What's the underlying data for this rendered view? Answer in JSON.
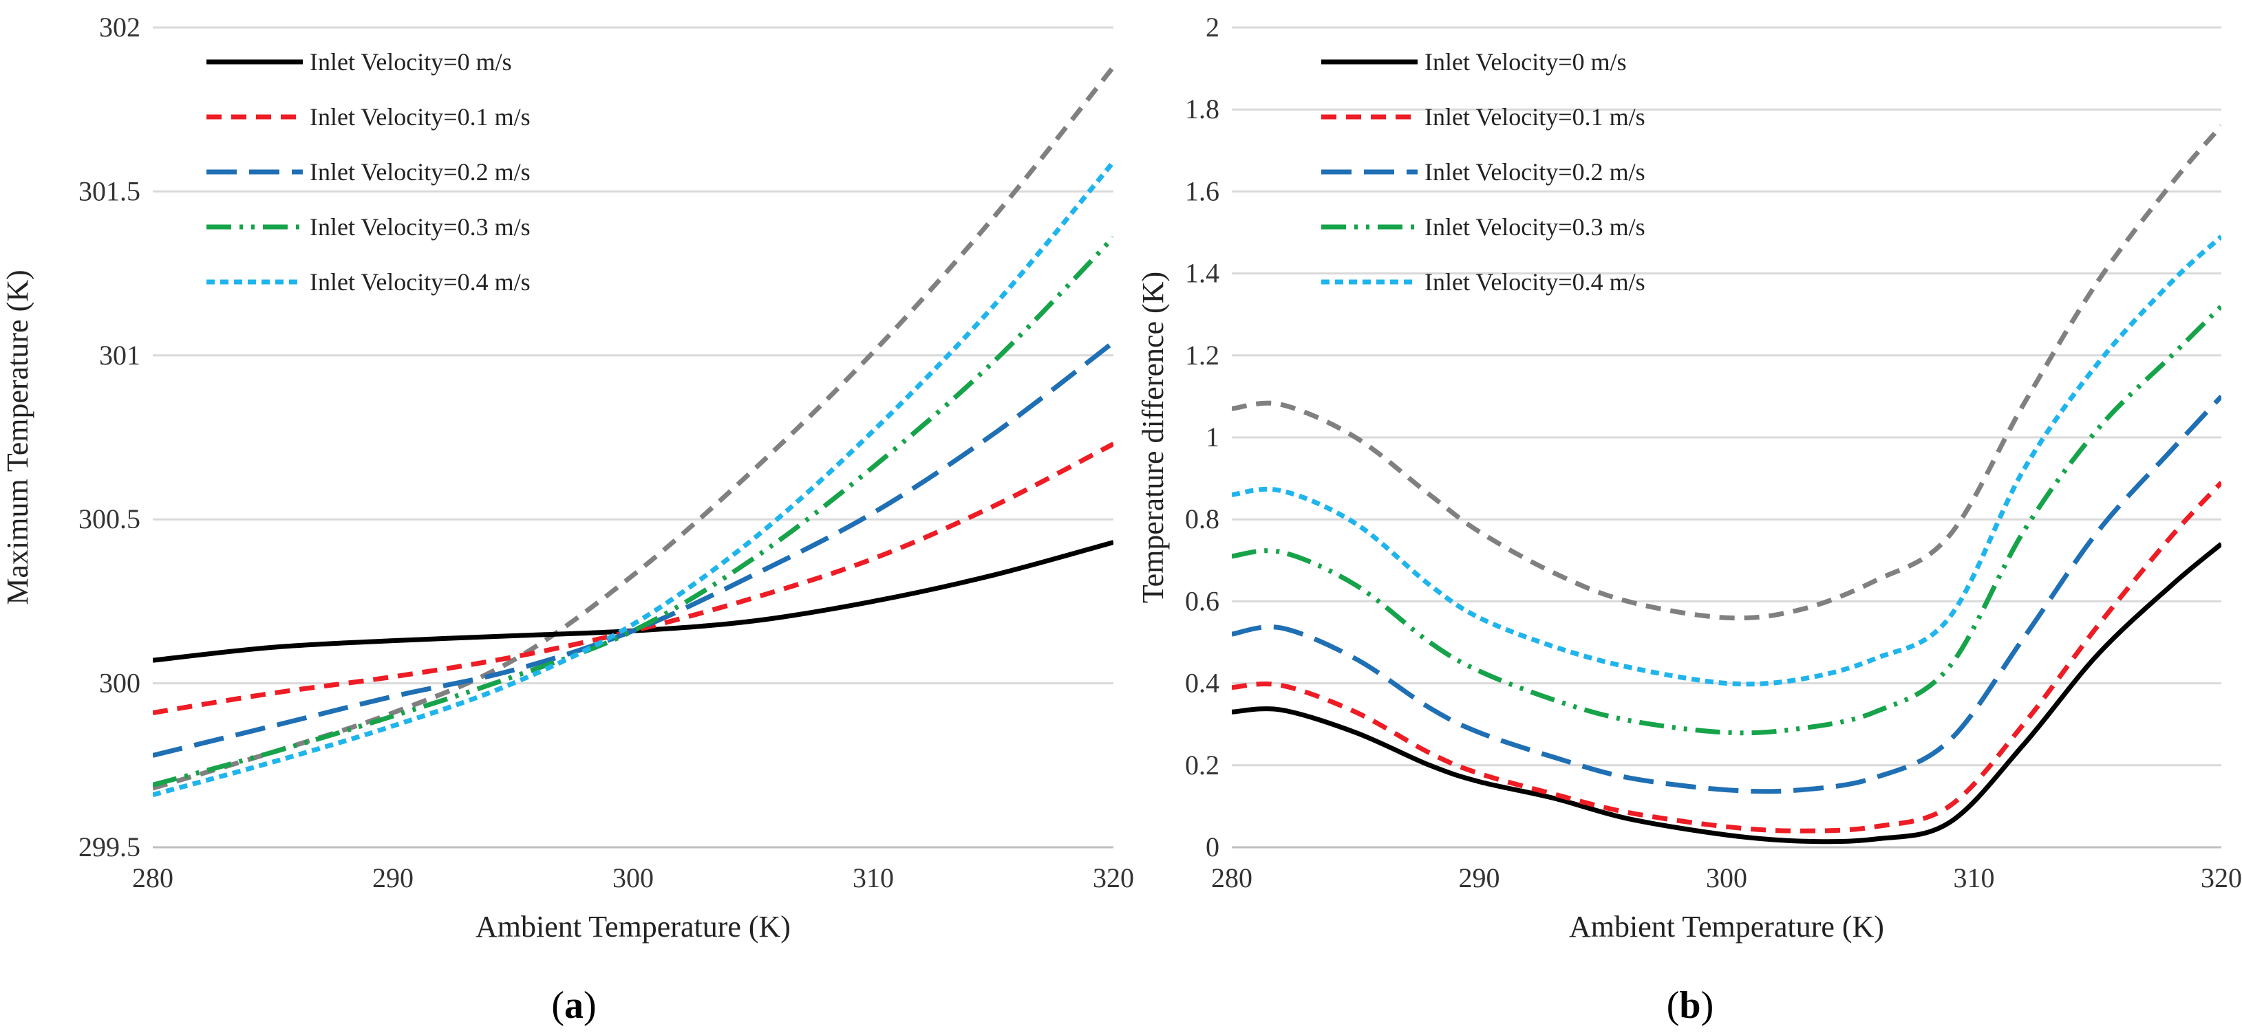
{
  "chart_data": [
    {
      "panel": "a",
      "type": "line",
      "title": "",
      "xlabel": "Ambient Temperature (K)",
      "ylabel": "Maximum Temperature (K)",
      "xlim": [
        280,
        320
      ],
      "ylim": [
        299.5,
        302
      ],
      "xticks": [
        280,
        290,
        300,
        310,
        320
      ],
      "yticks": [
        299.5,
        300,
        300.5,
        301,
        301.5,
        302
      ],
      "grid": "horizontal",
      "legend": "top-left",
      "x": [
        280,
        285,
        290,
        295,
        300,
        305,
        310,
        315,
        320
      ],
      "series": [
        {
          "name": "Inlet Velocity=0 m/s",
          "in_legend": true,
          "color": "#000000",
          "dash": "solid",
          "values": [
            300.07,
            300.11,
            300.13,
            300.145,
            300.16,
            300.19,
            300.25,
            300.33,
            300.43
          ]
        },
        {
          "name": "Inlet Velocity=0.1 m/s",
          "in_legend": true,
          "color": "#ee1c24",
          "dash": "dash",
          "values": [
            299.91,
            299.97,
            300.02,
            300.08,
            300.16,
            300.26,
            300.38,
            300.54,
            300.73
          ]
        },
        {
          "name": "Inlet Velocity=0.2 m/s",
          "in_legend": true,
          "color": "#1f6fb4",
          "dash": "longdash",
          "values": [
            299.78,
            299.87,
            299.96,
            300.04,
            300.16,
            300.33,
            300.52,
            300.76,
            301.04
          ]
        },
        {
          "name": "Inlet Velocity=0.3 m/s",
          "in_legend": true,
          "color": "#16a34a",
          "dash": "dashdotdot",
          "values": [
            299.69,
            299.79,
            299.9,
            300.02,
            300.16,
            300.38,
            300.66,
            300.98,
            301.36
          ]
        },
        {
          "name": "Inlet Velocity=0.4 m/s",
          "in_legend": true,
          "color": "#1fb5ec",
          "dash": "shortdash",
          "values": [
            299.66,
            299.76,
            299.87,
            300.0,
            300.18,
            300.44,
            300.77,
            301.15,
            301.59
          ]
        },
        {
          "name": "",
          "in_legend": false,
          "color": "#808080",
          "dash": "dash",
          "values": [
            299.68,
            299.79,
            299.91,
            300.07,
            300.33,
            300.65,
            301.01,
            301.42,
            301.88
          ]
        }
      ]
    },
    {
      "panel": "b",
      "type": "line",
      "title": "",
      "xlabel": "Ambient Temperature (K)",
      "ylabel": "Temperature difference (K)",
      "xlim": [
        280,
        320
      ],
      "ylim": [
        0,
        2
      ],
      "xticks": [
        280,
        290,
        300,
        310,
        320
      ],
      "yticks": [
        0,
        0.2,
        0.4,
        0.6,
        0.8,
        1,
        1.2,
        1.4,
        1.6,
        1.8,
        2
      ],
      "grid": "horizontal",
      "legend": "top-left",
      "x": [
        280,
        282,
        285,
        288,
        290,
        293,
        296,
        300,
        303,
        306,
        309,
        312,
        315,
        318,
        320
      ],
      "series": [
        {
          "name": "Inlet Velocity=0 m/s",
          "in_legend": true,
          "color": "#000000",
          "dash": "solid",
          "values": [
            0.33,
            0.335,
            0.28,
            0.2,
            0.16,
            0.12,
            0.07,
            0.03,
            0.015,
            0.02,
            0.06,
            0.25,
            0.47,
            0.64,
            0.74
          ]
        },
        {
          "name": "Inlet Velocity=0.1 m/s",
          "in_legend": true,
          "color": "#ee1c24",
          "dash": "dash",
          "values": [
            0.39,
            0.395,
            0.33,
            0.23,
            0.18,
            0.13,
            0.085,
            0.05,
            0.04,
            0.05,
            0.1,
            0.3,
            0.54,
            0.76,
            0.89
          ]
        },
        {
          "name": "Inlet Velocity=0.2 m/s",
          "in_legend": true,
          "color": "#1f6fb4",
          "dash": "longdash",
          "values": [
            0.52,
            0.535,
            0.46,
            0.34,
            0.28,
            0.22,
            0.17,
            0.14,
            0.14,
            0.17,
            0.26,
            0.51,
            0.77,
            0.97,
            1.1
          ]
        },
        {
          "name": "Inlet Velocity=0.3 m/s",
          "in_legend": true,
          "color": "#16a34a",
          "dash": "dashdotdot",
          "values": [
            0.71,
            0.72,
            0.64,
            0.5,
            0.43,
            0.36,
            0.31,
            0.28,
            0.29,
            0.33,
            0.44,
            0.77,
            1.02,
            1.2,
            1.32
          ]
        },
        {
          "name": "Inlet Velocity=0.4 m/s",
          "in_legend": true,
          "color": "#1fb5ec",
          "dash": "shortdash",
          "values": [
            0.86,
            0.87,
            0.79,
            0.64,
            0.56,
            0.49,
            0.44,
            0.4,
            0.41,
            0.46,
            0.56,
            0.92,
            1.18,
            1.38,
            1.49
          ]
        },
        {
          "name": "",
          "in_legend": false,
          "color": "#808080",
          "dash": "dash",
          "values": [
            1.07,
            1.08,
            1.0,
            0.86,
            0.77,
            0.67,
            0.6,
            0.56,
            0.58,
            0.65,
            0.76,
            1.08,
            1.38,
            1.62,
            1.76
          ]
        }
      ]
    }
  ],
  "panel_labels": [
    "(a)",
    "(b)"
  ]
}
